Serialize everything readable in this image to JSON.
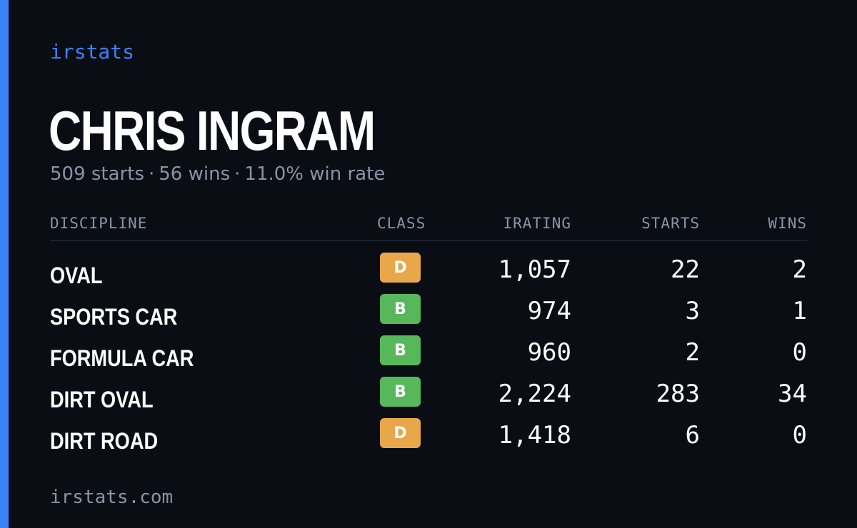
{
  "brand": "irstats",
  "player": {
    "name": "CHRIS INGRAM",
    "starts_text": "509 starts",
    "wins_text": "56 wins",
    "win_rate_text": "11.0% win rate",
    "separator": "·"
  },
  "table": {
    "headers": {
      "discipline": "DISCIPLINE",
      "class": "CLASS",
      "irating": "IRATING",
      "starts": "STARTS",
      "wins": "WINS"
    },
    "rows": [
      {
        "discipline": "OVAL",
        "class": "D",
        "class_color": "#e8a84a",
        "irating": "1,057",
        "starts": "22",
        "wins": "2"
      },
      {
        "discipline": "SPORTS CAR",
        "class": "B",
        "class_color": "#56b85a",
        "irating": "974",
        "starts": "3",
        "wins": "1"
      },
      {
        "discipline": "FORMULA CAR",
        "class": "B",
        "class_color": "#56b85a",
        "irating": "960",
        "starts": "2",
        "wins": "0"
      },
      {
        "discipline": "DIRT OVAL",
        "class": "B",
        "class_color": "#56b85a",
        "irating": "2,224",
        "starts": "283",
        "wins": "34"
      },
      {
        "discipline": "DIRT ROAD",
        "class": "D",
        "class_color": "#e8a84a",
        "irating": "1,418",
        "starts": "6",
        "wins": "0"
      }
    ]
  },
  "footer": "irstats.com",
  "colors": {
    "accent": "#3b82f6",
    "background": "#0a0d14",
    "muted": "#8a93a6"
  }
}
